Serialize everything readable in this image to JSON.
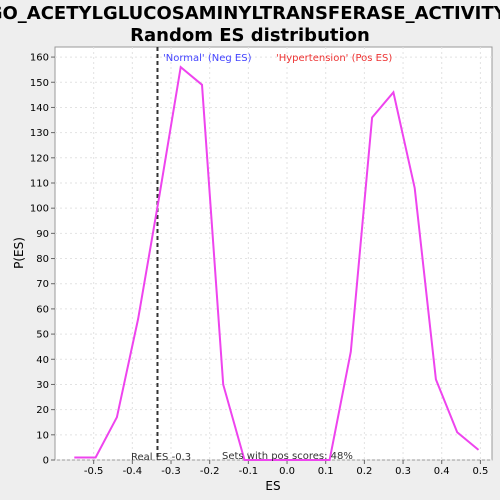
{
  "chart_data": {
    "type": "line",
    "title_line1": "GO_ACETYLGLUCOSAMINYLTRANSFERASE_ACTIVITY:",
    "title_line2": "Random ES distribution",
    "xlabel": "ES",
    "ylabel": "P(ES)",
    "xlim": [
      -0.6,
      0.53
    ],
    "ylim": [
      0,
      164
    ],
    "xticks": [
      -0.5,
      -0.4,
      -0.3,
      -0.2,
      -0.1,
      0.0,
      0.1,
      0.2,
      0.3,
      0.4,
      0.5
    ],
    "xtick_labels": [
      "-0.5",
      "-0.4",
      "-0.3",
      "-0.2",
      "-0.1",
      "0.0",
      "0.1",
      "0.2",
      "0.3",
      "0.4",
      "0.5"
    ],
    "yticks": [
      0,
      10,
      20,
      30,
      40,
      50,
      60,
      70,
      80,
      90,
      100,
      110,
      120,
      130,
      140,
      150,
      160
    ],
    "grid": true,
    "line_color": "#ee44ee",
    "series": [
      {
        "x": [
          -0.55,
          -0.495,
          -0.44,
          -0.385,
          -0.33,
          -0.275,
          -0.22,
          -0.165,
          -0.11,
          -0.055,
          0.0,
          0.055,
          0.11,
          0.165,
          0.22,
          0.275,
          0.33,
          0.385,
          0.44,
          0.495
        ],
        "y": [
          1,
          1,
          17,
          56,
          105,
          156,
          149,
          30,
          0,
          0,
          0,
          0,
          0,
          43,
          136,
          146,
          108,
          32,
          11,
          4
        ]
      }
    ],
    "real_es": -0.335,
    "real_es_label": "Real ES -0.3",
    "neg_label": "'Normal' (Neg ES)",
    "neg_color": "#4444ff",
    "pos_label": "'Hypertension' (Pos ES)",
    "pos_color": "#ee3333",
    "footer_label": "Sets with pos scores: 48%"
  }
}
